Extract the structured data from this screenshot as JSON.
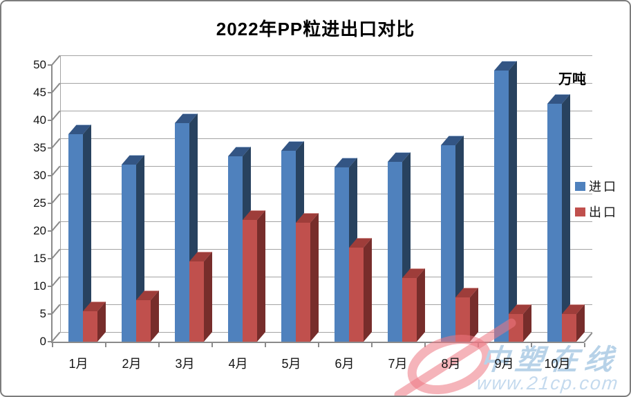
{
  "title": "2022年PP粒进出口对比",
  "unit_label": "万吨",
  "watermark": {
    "brand": "中塑在线",
    "url": "www.21cp.com"
  },
  "colors": {
    "grid": "#a3a3a3",
    "axis": "#8a8a8a",
    "text": "#141414",
    "watermark_pink": "rgba(236,118,130,0.55)",
    "watermark_blue": "#b7d2e8",
    "import_blue": "#4f81bd",
    "export_red": "#c0504d"
  },
  "chart_data": {
    "type": "bar",
    "style": "3d-clustered-column",
    "title": "2022年PP粒进出口对比",
    "unit": "万吨",
    "xlabel": "",
    "ylabel": "万吨",
    "categories": [
      "1月",
      "2月",
      "3月",
      "4月",
      "5月",
      "6月",
      "7月",
      "8月",
      "9月",
      "10月"
    ],
    "series": [
      {
        "name": "进口",
        "id": "import",
        "values": [
          37.5,
          32,
          39.5,
          33.5,
          34.5,
          31.5,
          32.5,
          35.5,
          49,
          43
        ],
        "color": "#4f81bd",
        "color_top": "#335584",
        "color_side": "#28425f",
        "color_bevel": "#aec3dd"
      },
      {
        "name": "出口",
        "id": "export",
        "values": [
          5.5,
          7.5,
          14.5,
          22,
          21.5,
          17,
          11.5,
          8,
          5,
          5
        ],
        "color": "#c0504d",
        "color_top": "#9e3d3a",
        "color_side": "#772d2b",
        "color_bevel": "#d29390"
      }
    ],
    "ylim": [
      0,
      50
    ],
    "ytick_step": 5,
    "grid": true,
    "legend_position": "right"
  }
}
